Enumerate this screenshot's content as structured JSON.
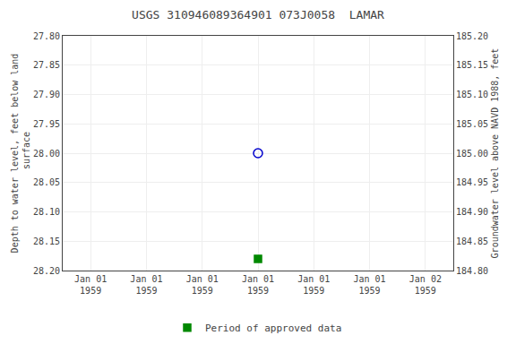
{
  "chart_data": {
    "type": "scatter",
    "title": "USGS 310946089364901 073J0058  LAMAR",
    "y_label": "Depth to water level, feet below land\n surface",
    "y2_label": "Groundwater level above NAVD 1988, feet",
    "categories": [
      "Jan 01\n1959",
      "Jan 01\n1959",
      "Jan 01\n1959",
      "Jan 01\n1959",
      "Jan 01\n1959",
      "Jan 01\n1959",
      "Jan 02\n1959"
    ],
    "series": [
      {
        "color": "#0000cc",
        "marker": "open circle",
        "values": [
          null,
          null,
          null,
          28.0,
          null,
          null,
          null
        ]
      },
      {
        "name": "Period of approved data",
        "color": "#008800",
        "marker": "square",
        "values": [
          null,
          null,
          null,
          28.18,
          null,
          null,
          null
        ]
      }
    ],
    "ylim": [
      28.2,
      27.8
    ],
    "yticks": [
      {
        "value": 27.8,
        "label": "27.80"
      },
      {
        "value": 27.85,
        "label": "27.85"
      },
      {
        "value": 27.9,
        "label": "27.90"
      },
      {
        "value": 27.95,
        "label": "27.95"
      },
      {
        "value": 28.0,
        "label": "28.00"
      },
      {
        "value": 28.05,
        "label": "28.05"
      },
      {
        "value": 28.1,
        "label": "28.10"
      },
      {
        "value": 28.15,
        "label": "28.15"
      },
      {
        "value": 28.2,
        "label": "28.20"
      }
    ],
    "y2lim": [
      184.8,
      185.2
    ],
    "y2ticks": [
      {
        "value": 185.2,
        "label": "185.20"
      },
      {
        "value": 185.15,
        "label": "185.15"
      },
      {
        "value": 185.1,
        "label": "185.10"
      },
      {
        "value": 185.05,
        "label": "185.05"
      },
      {
        "value": 185.0,
        "label": "185.00"
      },
      {
        "value": 184.95,
        "label": "184.95"
      },
      {
        "value": 184.9,
        "label": "184.90"
      },
      {
        "value": 184.85,
        "label": "184.85"
      },
      {
        "value": 184.8,
        "label": "184.80"
      }
    ],
    "grid": true,
    "legend": "bottom"
  }
}
